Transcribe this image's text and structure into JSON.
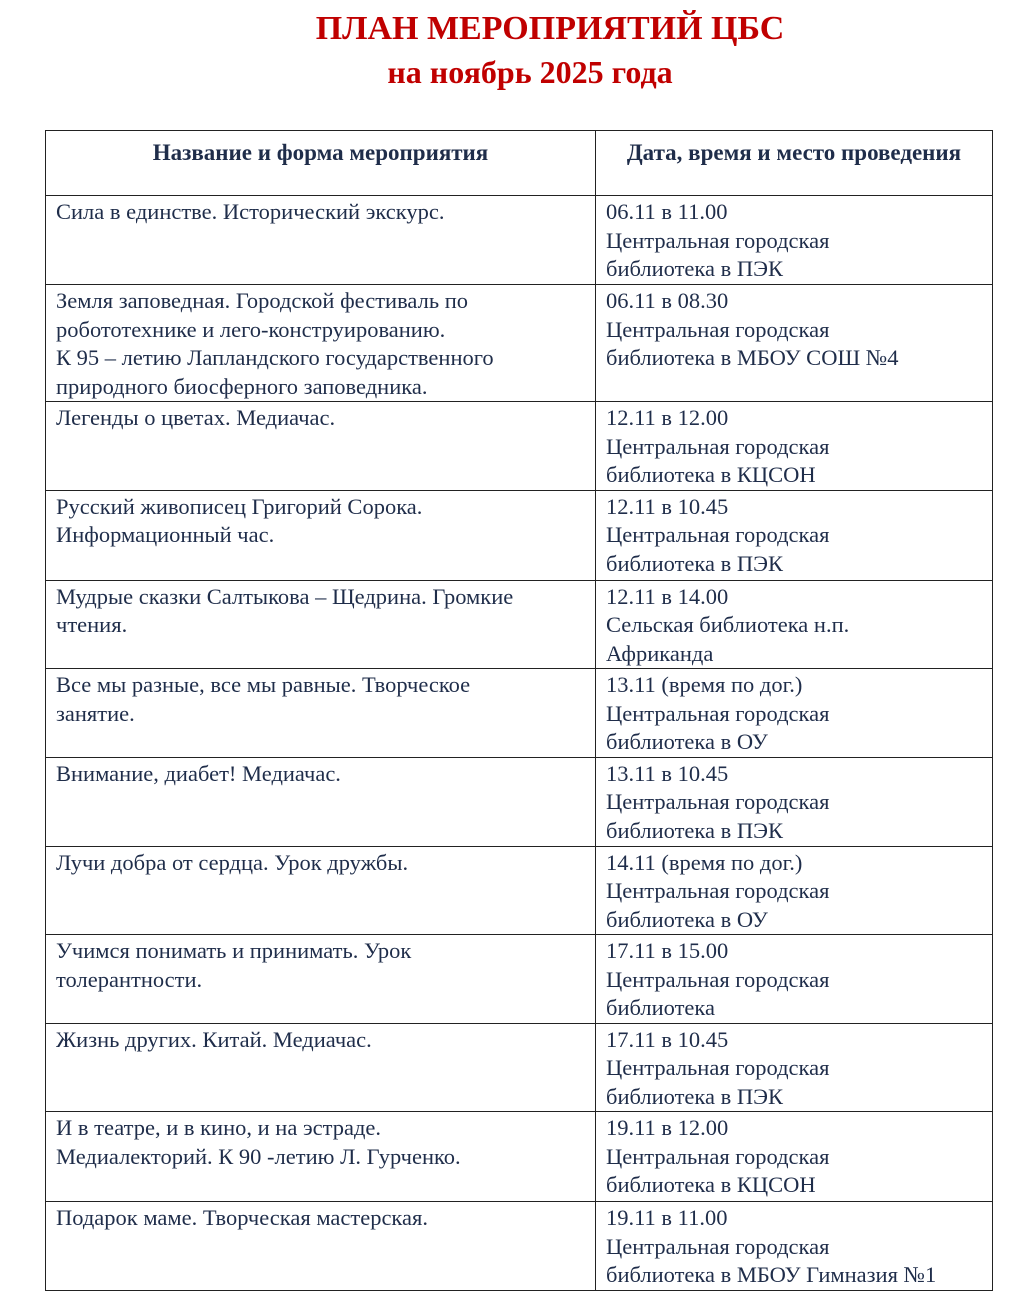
{
  "title": {
    "line1": "ПЛАН МЕРОПРИЯТИЙ ЦБС",
    "line2": "на ноябрь 2025 года",
    "color": "#c00000"
  },
  "table": {
    "headers": [
      "Название и форма мероприятия",
      "Дата, время и место проведения"
    ],
    "rows": [
      {
        "event": "Сила в единстве. Исторический экскурс.",
        "when": "06.11 в 11.00\nЦентральная городская\nбиблиотека в ПЭК"
      },
      {
        "event": "Земля заповедная. Городской фестиваль по\nробототехнике и лего-конструированию.\nК 95 – летию Лапландского государственного\nприродного биосферного заповедника.",
        "when": "06.11 в 08.30\nЦентральная городская\nбиблиотека в МБОУ СОШ №4"
      },
      {
        "event": "Легенды о цветах. Медиачас.",
        "when": "12.11 в 12.00\nЦентральная городская\nбиблиотека в КЦСОН"
      },
      {
        "event": "Русский живописец Григорий Сорока.\nИнформационный час.",
        "when": "12.11 в 10.45\nЦентральная городская\nбиблиотека в ПЭК"
      },
      {
        "event": "Мудрые сказки Салтыкова – Щедрина. Громкие\nчтения.",
        "when": "12.11 в 14.00\nСельская библиотека н.п.\nАфриканда"
      },
      {
        "event": "Все мы разные, все мы равные. Творческое\nзанятие.",
        "when": "13.11 (время по дог.)\nЦентральная городская\nбиблиотека в ОУ"
      },
      {
        "event": "Внимание, диабет! Медиачас.",
        "when": "13.11 в 10.45\nЦентральная городская\nбиблиотека в ПЭК"
      },
      {
        "event": "Лучи добра от сердца. Урок дружбы.",
        "when": "14.11 (время по дог.)\nЦентральная городская\nбиблиотека в ОУ"
      },
      {
        "event": "Учимся понимать и принимать. Урок\nтолерантности.",
        "when": "17.11 в 15.00\nЦентральная городская\nбиблиотека"
      },
      {
        "event": "Жизнь других. Китай. Медиачас.",
        "when": "17.11 в 10.45\nЦентральная городская\nбиблиотека в ПЭК"
      },
      {
        "event": "И в театре, и в кино, и на эстраде.\nМедиалекторий. К 90 -летию Л. Гурченко.",
        "when": "19.11 в 12.00\nЦентральная городская\nбиблиотека в КЦСОН"
      },
      {
        "event": "Подарок маме. Творческая мастерская.",
        "when": "19.11 в 11.00\nЦентральная городская\nбиблиотека в МБОУ Гимназия №1"
      }
    ]
  }
}
